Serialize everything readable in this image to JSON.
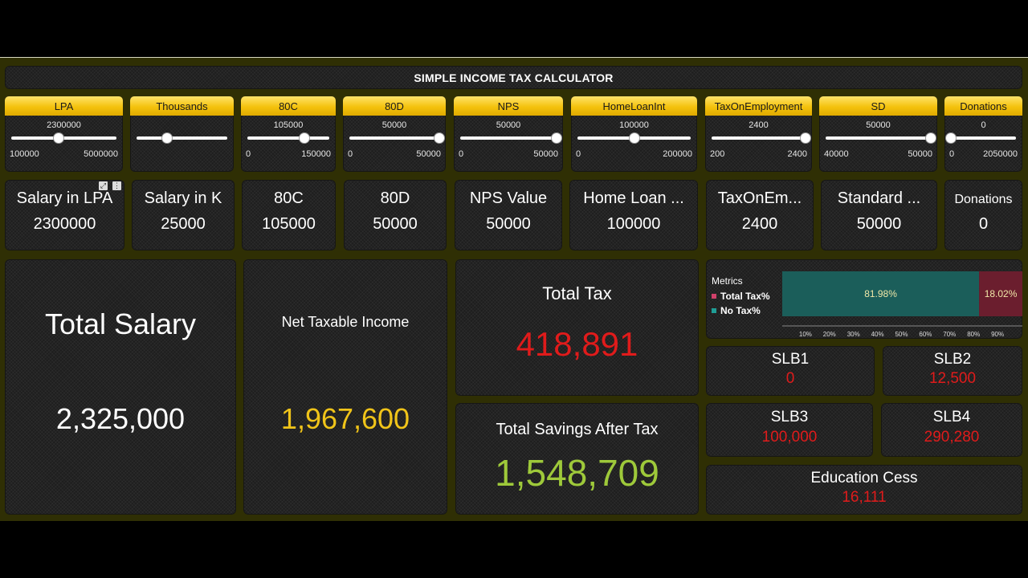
{
  "title": "SIMPLE INCOME TAX CALCULATOR",
  "colors": {
    "accent": "#f4c20d",
    "dashboard_bg": "#2f2f04",
    "tax_red": "#e01b1b",
    "taxable_yellow": "#f0c419",
    "savings_green": "#9ec93a"
  },
  "sliders": [
    {
      "label": "LPA",
      "value": "2300000",
      "min": "100000",
      "max": "5000000",
      "fraction": 0.449
    },
    {
      "label": "Thousands",
      "value": "",
      "min": "",
      "max": "",
      "fraction": 0.34
    },
    {
      "label": "80C",
      "value": "105000",
      "min": "0",
      "max": "150000",
      "fraction": 0.7
    },
    {
      "label": "80D",
      "value": "50000",
      "min": "0",
      "max": "50000",
      "fraction": 1.0
    },
    {
      "label": "NPS",
      "value": "50000",
      "min": "0",
      "max": "50000",
      "fraction": 1.0
    },
    {
      "label": "HomeLoanInt",
      "value": "100000",
      "min": "0",
      "max": "200000",
      "fraction": 0.5
    },
    {
      "label": "TaxOnEmployment",
      "value": "2400",
      "min": "200",
      "max": "2400",
      "fraction": 1.0
    },
    {
      "label": "SD",
      "value": "50000",
      "min": "40000",
      "max": "50000",
      "fraction": 1.0
    },
    {
      "label": "Donations",
      "value": "0",
      "min": "0",
      "max": "2050000",
      "fraction": 0.0
    }
  ],
  "kpis": [
    {
      "label": "Salary in LPA",
      "value": "2300000"
    },
    {
      "label": "Salary in K",
      "value": "25000"
    },
    {
      "label": "80C",
      "value": "105000"
    },
    {
      "label": "80D",
      "value": "50000"
    },
    {
      "label": "NPS Value",
      "value": "50000"
    },
    {
      "label": "Home Loan ...",
      "value": "100000"
    },
    {
      "label": "TaxOnEm...",
      "value": "2400"
    },
    {
      "label": "Standard ...",
      "value": "50000"
    },
    {
      "label": "Donations",
      "value": "0"
    }
  ],
  "total_salary": {
    "label": "Total Salary",
    "value": "2,325,000"
  },
  "net_taxable": {
    "label": "Net Taxable Income",
    "value": "1,967,600"
  },
  "total_tax": {
    "label": "Total Tax",
    "value": "418,891"
  },
  "total_savings": {
    "label": "Total Savings After Tax",
    "value": "1,548,709"
  },
  "slabs": [
    {
      "label": "SLB1",
      "value": "0"
    },
    {
      "label": "SLB2",
      "value": "12,500"
    },
    {
      "label": "SLB3",
      "value": "100,000"
    },
    {
      "label": "SLB4",
      "value": "290,280"
    }
  ],
  "education_cess": {
    "label": "Education Cess",
    "value": "16,111"
  },
  "chart_data": {
    "type": "bar",
    "orientation": "horizontal-stacked",
    "legend_title": "Metrics",
    "legend_position": "left",
    "series": [
      {
        "name": "No Tax%",
        "values": [
          81.98
        ],
        "label": "81.98%",
        "color": "#1b5e5a"
      },
      {
        "name": "Total Tax%",
        "values": [
          18.02
        ],
        "label": "18.02%",
        "color": "#6b1e2e"
      }
    ],
    "legend": [
      {
        "name": "Total Tax%",
        "color": "#d0406a"
      },
      {
        "name": "No Tax%",
        "color": "#1f9e96"
      }
    ],
    "x_ticks": [
      "10%",
      "20%",
      "30%",
      "40%",
      "50%",
      "60%",
      "70%",
      "80%",
      "90%"
    ],
    "xlim": [
      0,
      100
    ]
  }
}
